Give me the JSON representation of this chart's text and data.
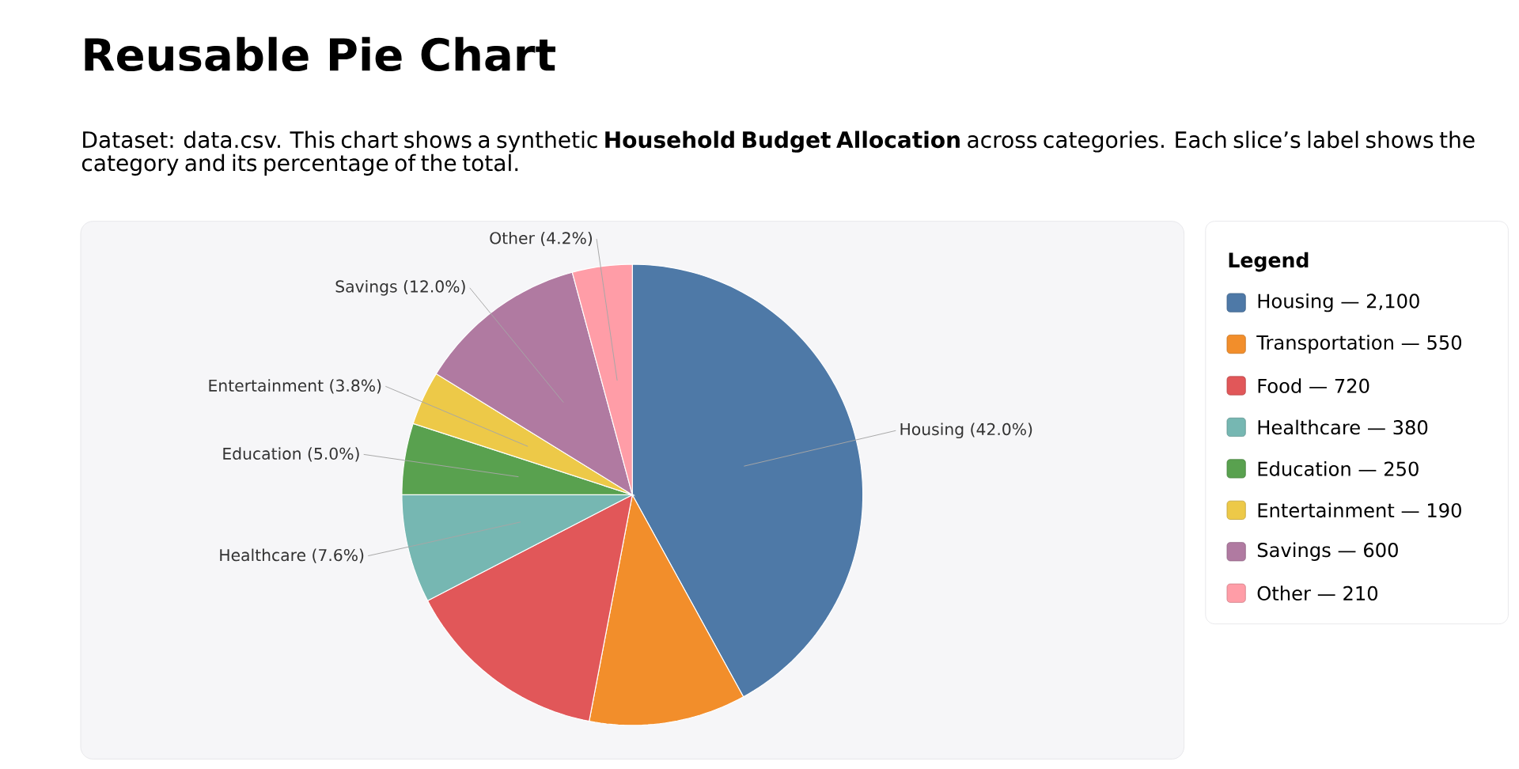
{
  "chart_data": {
    "type": "pie",
    "title": "Reusable Pie Chart",
    "subtitle": "Dataset: data.csv. This chart shows a synthetic **Household Budget Allocation** across categories. Each slice’s label shows the category and its percentage of the total.",
    "legend_title": "Legend",
    "legend": "right",
    "categories": [
      "Housing — 2,100",
      "Transportation — 550",
      "Food — 720",
      "Healthcare — 380",
      "Education — 250",
      "Entertainment — 190",
      "Savings — 600",
      "Other — 210"
    ],
    "values": [
      42.0,
      11.0,
      14.4,
      7.6,
      5.0,
      3.8,
      12.0,
      4.2
    ],
    "colors": [
      "#4e79a7",
      "#f28e2b",
      "#e15759",
      "#76b7b2",
      "#59a14f",
      "#edc948",
      "#b07aa1",
      "#ff9da7"
    ],
    "value_labels": [
      "Housing (42.0%)",
      null,
      null,
      "Healthcare (7.6%)",
      "Education (5.0%)",
      "Entertainment (3.8%)",
      "Savings (12.0%)",
      "Other (4.2%)"
    ]
  }
}
